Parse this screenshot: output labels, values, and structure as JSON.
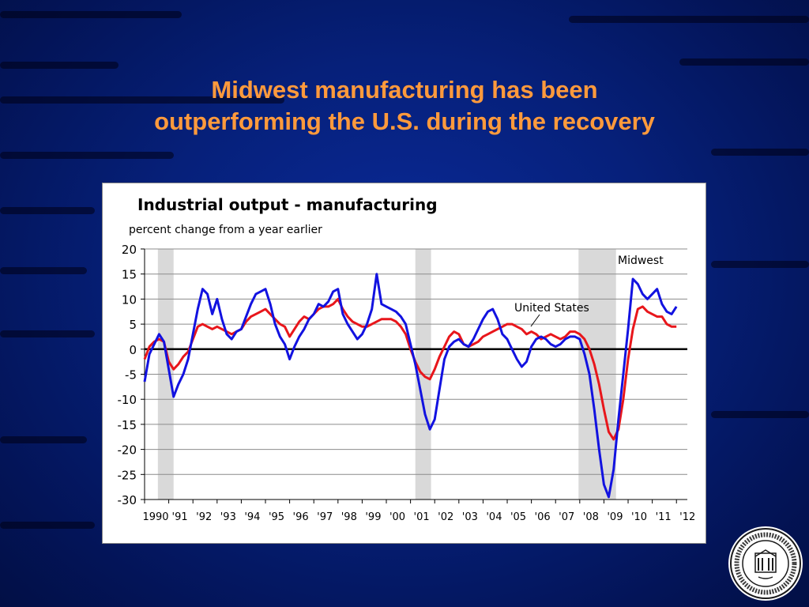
{
  "slide": {
    "title_line1": "Midwest manufacturing has been",
    "title_line2": "outperforming the U.S. during the recovery"
  },
  "colors": {
    "background": "#06207a",
    "title": "#ff9a3c",
    "us_series": "#e8161b",
    "midwest_series": "#1212e0",
    "recession_band": "#d9d9d9"
  },
  "seal": {
    "text": "FEDERAL RESERVE BANK OF CHICAGO INCORPORATED MAY 18, 1914"
  },
  "chart_data": {
    "type": "line",
    "title": "Industrial output - manufacturing",
    "subtitle": "percent change from a year earlier",
    "ylim": [
      -30,
      20
    ],
    "yticks": [
      20,
      15,
      10,
      5,
      0,
      -5,
      -10,
      -15,
      -20,
      -25,
      -30
    ],
    "xlim": [
      1990,
      2012.45
    ],
    "xtick_labels": [
      {
        "year": 1990,
        "label": "1990"
      },
      {
        "year": 1991,
        "label": "'91"
      },
      {
        "year": 1992,
        "label": "'92"
      },
      {
        "year": 1993,
        "label": "'93"
      },
      {
        "year": 1994,
        "label": "'94"
      },
      {
        "year": 1995,
        "label": "'95"
      },
      {
        "year": 1996,
        "label": "'96"
      },
      {
        "year": 1997,
        "label": "'97"
      },
      {
        "year": 1998,
        "label": "'98"
      },
      {
        "year": 1999,
        "label": "'99"
      },
      {
        "year": 2000,
        "label": "'00"
      },
      {
        "year": 2001,
        "label": "'01"
      },
      {
        "year": 2002,
        "label": "'02"
      },
      {
        "year": 2003,
        "label": "'03"
      },
      {
        "year": 2004,
        "label": "'04"
      },
      {
        "year": 2005,
        "label": "'05"
      },
      {
        "year": 2006,
        "label": "'06"
      },
      {
        "year": 2007,
        "label": "'07"
      },
      {
        "year": 2008,
        "label": "'08"
      },
      {
        "year": 2009,
        "label": "'09"
      },
      {
        "year": 2010,
        "label": "'10"
      },
      {
        "year": 2011,
        "label": "'11"
      },
      {
        "year": 2012,
        "label": "'12"
      }
    ],
    "grid": "horizontal",
    "recessions": [
      [
        1990.55,
        1991.2
      ],
      [
        2001.2,
        2001.85
      ],
      [
        2007.95,
        2009.5
      ]
    ],
    "annotations": [
      {
        "text": "Midwest",
        "series": "Midwest"
      },
      {
        "text": "United States",
        "series": "United States"
      }
    ],
    "series": [
      {
        "name": "United States",
        "color": "#e8161b",
        "x": [
          1990.0,
          1990.2,
          1990.4,
          1990.6,
          1990.8,
          1991.0,
          1991.2,
          1991.4,
          1991.6,
          1991.8,
          1992.0,
          1992.2,
          1992.4,
          1992.6,
          1992.8,
          1993.0,
          1993.2,
          1993.4,
          1993.6,
          1993.8,
          1994.0,
          1994.2,
          1994.4,
          1994.6,
          1994.8,
          1995.0,
          1995.2,
          1995.4,
          1995.6,
          1995.8,
          1996.0,
          1996.2,
          1996.4,
          1996.6,
          1996.8,
          1997.0,
          1997.2,
          1997.4,
          1997.6,
          1997.8,
          1998.0,
          1998.2,
          1998.4,
          1998.6,
          1998.8,
          1999.0,
          1999.2,
          1999.4,
          1999.6,
          1999.8,
          2000.0,
          2000.2,
          2000.4,
          2000.6,
          2000.8,
          2001.0,
          2001.2,
          2001.4,
          2001.6,
          2001.8,
          2002.0,
          2002.2,
          2002.4,
          2002.6,
          2002.8,
          2003.0,
          2003.2,
          2003.4,
          2003.6,
          2003.8,
          2004.0,
          2004.2,
          2004.4,
          2004.6,
          2004.8,
          2005.0,
          2005.2,
          2005.4,
          2005.6,
          2005.8,
          2006.0,
          2006.2,
          2006.4,
          2006.6,
          2006.8,
          2007.0,
          2007.2,
          2007.4,
          2007.6,
          2007.8,
          2008.0,
          2008.2,
          2008.4,
          2008.6,
          2008.8,
          2009.0,
          2009.2,
          2009.4,
          2009.6,
          2009.8,
          2010.0,
          2010.2,
          2010.4,
          2010.6,
          2010.8,
          2011.0,
          2011.2,
          2011.4,
          2011.6,
          2011.8,
          2012.0
        ],
        "y": [
          -2.0,
          0.5,
          1.5,
          2.0,
          1.5,
          -2.5,
          -4.0,
          -3.0,
          -1.5,
          -0.5,
          2.0,
          4.5,
          5.0,
          4.5,
          4.0,
          4.5,
          4.0,
          3.5,
          3.0,
          3.5,
          4.0,
          5.5,
          6.5,
          7.0,
          7.5,
          8.0,
          7.0,
          6.0,
          5.0,
          4.5,
          2.5,
          4.0,
          5.5,
          6.5,
          6.0,
          7.0,
          8.0,
          8.5,
          8.5,
          9.0,
          10.0,
          8.0,
          6.5,
          5.5,
          5.0,
          4.5,
          4.5,
          5.0,
          5.5,
          6.0,
          6.0,
          6.0,
          5.5,
          4.5,
          3.0,
          0.0,
          -2.5,
          -4.5,
          -5.5,
          -6.0,
          -4.0,
          -1.5,
          0.5,
          2.5,
          3.5,
          3.0,
          1.0,
          0.5,
          1.0,
          1.5,
          2.5,
          3.0,
          3.5,
          4.0,
          4.5,
          5.0,
          5.0,
          4.5,
          4.0,
          3.0,
          3.5,
          3.0,
          2.0,
          2.5,
          3.0,
          2.5,
          2.0,
          2.5,
          3.5,
          3.5,
          3.0,
          2.0,
          0.0,
          -3.0,
          -7.0,
          -12.0,
          -16.5,
          -18.0,
          -16.0,
          -10.0,
          -2.0,
          4.0,
          8.0,
          8.5,
          7.5,
          7.0,
          6.5,
          6.5,
          5.0,
          4.5,
          4.5
        ]
      },
      {
        "name": "Midwest",
        "color": "#1212e0",
        "x": [
          1990.0,
          1990.2,
          1990.4,
          1990.6,
          1990.8,
          1991.0,
          1991.2,
          1991.4,
          1991.6,
          1991.8,
          1992.0,
          1992.2,
          1992.4,
          1992.6,
          1992.8,
          1993.0,
          1993.2,
          1993.4,
          1993.6,
          1993.8,
          1994.0,
          1994.2,
          1994.4,
          1994.6,
          1994.8,
          1995.0,
          1995.2,
          1995.4,
          1995.6,
          1995.8,
          1996.0,
          1996.2,
          1996.4,
          1996.6,
          1996.8,
          1997.0,
          1997.2,
          1997.4,
          1997.6,
          1997.8,
          1998.0,
          1998.2,
          1998.4,
          1998.6,
          1998.8,
          1999.0,
          1999.2,
          1999.4,
          1999.6,
          1999.8,
          2000.0,
          2000.2,
          2000.4,
          2000.6,
          2000.8,
          2001.0,
          2001.2,
          2001.4,
          2001.6,
          2001.8,
          2002.0,
          2002.2,
          2002.4,
          2002.6,
          2002.8,
          2003.0,
          2003.2,
          2003.4,
          2003.6,
          2003.8,
          2004.0,
          2004.2,
          2004.4,
          2004.6,
          2004.8,
          2005.0,
          2005.2,
          2005.4,
          2005.6,
          2005.8,
          2006.0,
          2006.2,
          2006.4,
          2006.6,
          2006.8,
          2007.0,
          2007.2,
          2007.4,
          2007.6,
          2007.8,
          2008.0,
          2008.2,
          2008.4,
          2008.6,
          2008.8,
          2009.0,
          2009.2,
          2009.4,
          2009.6,
          2009.8,
          2010.0,
          2010.2,
          2010.4,
          2010.6,
          2010.8,
          2011.0,
          2011.2,
          2011.4,
          2011.6,
          2011.8,
          2012.0
        ],
        "y": [
          -6.5,
          -1.0,
          1.0,
          3.0,
          1.5,
          -4.0,
          -9.5,
          -7.0,
          -5.0,
          -2.0,
          3.0,
          8.0,
          12.0,
          11.0,
          7.0,
          10.0,
          6.0,
          3.0,
          2.0,
          3.5,
          4.0,
          6.5,
          9.0,
          11.0,
          11.5,
          12.0,
          9.0,
          5.0,
          2.5,
          1.0,
          -2.0,
          0.5,
          2.5,
          4.0,
          6.0,
          7.0,
          9.0,
          8.5,
          9.5,
          11.5,
          12.0,
          7.0,
          5.0,
          3.5,
          2.0,
          3.0,
          5.0,
          8.0,
          15.0,
          9.0,
          8.5,
          8.0,
          7.5,
          6.5,
          5.0,
          1.0,
          -3.0,
          -8.0,
          -13.0,
          -16.0,
          -14.0,
          -8.0,
          -2.0,
          0.5,
          1.5,
          2.0,
          1.0,
          0.5,
          2.0,
          4.0,
          6.0,
          7.5,
          8.0,
          6.0,
          3.0,
          2.0,
          0.0,
          -2.0,
          -3.5,
          -2.5,
          0.5,
          2.0,
          2.5,
          2.0,
          1.0,
          0.5,
          1.0,
          2.0,
          2.5,
          2.5,
          2.0,
          -1.0,
          -5.0,
          -12.0,
          -20.0,
          -27.0,
          -29.5,
          -24.0,
          -14.0,
          -5.0,
          4.0,
          14.0,
          13.0,
          11.0,
          10.0,
          11.0,
          12.0,
          9.0,
          7.5,
          7.0,
          8.5
        ]
      }
    ]
  }
}
